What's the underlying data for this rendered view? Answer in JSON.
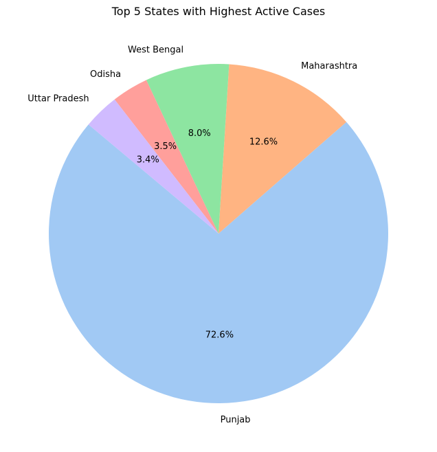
{
  "chart_data": {
    "type": "pie",
    "title": "Top 5 States with Highest Active Cases",
    "categories": [
      "Punjab",
      "Maharashtra",
      "West Bengal",
      "Odisha",
      "Uttar Pradesh"
    ],
    "values": [
      72.6,
      12.6,
      8.0,
      3.5,
      3.4
    ],
    "value_labels": [
      "72.6%",
      "12.6%",
      "8.0%",
      "3.5%",
      "3.4%"
    ],
    "colors": [
      "#a1c9f4",
      "#ffb482",
      "#8de5a1",
      "#ff9f9b",
      "#d0bbff"
    ],
    "start_angle_deg": 140,
    "direction": "counterclockwise",
    "legend": "none"
  }
}
